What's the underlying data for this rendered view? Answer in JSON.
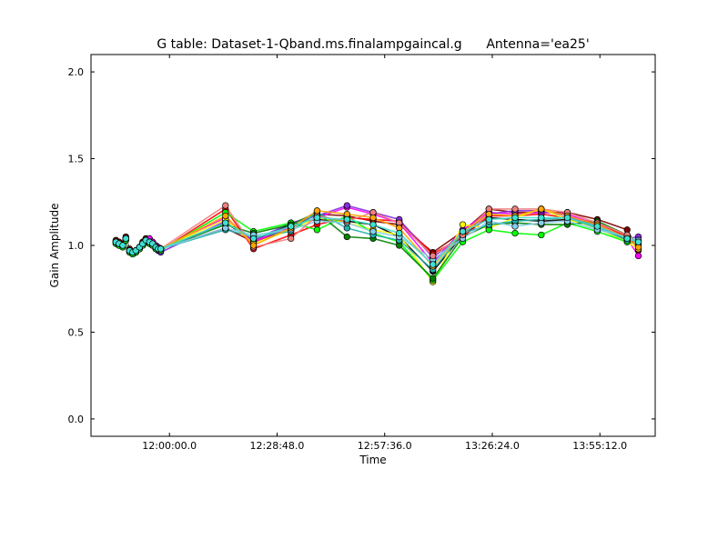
{
  "chart_data": {
    "type": "line",
    "title": "G table: Dataset-1-Qband.ms.finalampgaincal.g      Antenna='ea25'",
    "xlabel": "Time",
    "ylabel": "Gain Amplitude",
    "x_unit": "time of day",
    "xlim": [
      "11:39:00",
      "14:10:00"
    ],
    "ylim": [
      -0.1,
      2.1
    ],
    "xticks": [
      "12:00:00.0",
      "12:28:48.0",
      "12:57:36.0",
      "13:26:24.0",
      "13:55:12.0"
    ],
    "yticks": [
      "0.0",
      "0.5",
      "1.0",
      "1.5",
      "2.0"
    ],
    "grid": false,
    "legend": "none",
    "x": [
      "11:45:40",
      "11:46:30",
      "11:47:30",
      "11:48:20",
      "11:49:20",
      "11:50:10",
      "11:51:00",
      "11:52:00",
      "11:52:50",
      "11:53:40",
      "11:54:40",
      "11:55:30",
      "11:56:20",
      "11:57:00",
      "11:57:40",
      "12:15:00",
      "12:22:30",
      "12:32:30",
      "12:39:30",
      "12:47:30",
      "12:54:30",
      "13:01:30",
      "13:10:30",
      "13:18:30",
      "13:25:30",
      "13:32:30",
      "13:39:30",
      "13:46:30",
      "13:54:30",
      "14:02:30",
      "14:05:30"
    ],
    "series": [
      {
        "color": "#000000",
        "values": [
          1.02,
          1.01,
          1.0,
          1.04,
          0.97,
          0.96,
          0.97,
          0.99,
          1.01,
          1.03,
          1.02,
          1.0,
          0.99,
          0.98,
          0.98,
          1.13,
          1.03,
          1.12,
          1.15,
          1.14,
          1.12,
          1.05,
          0.85,
          1.06,
          1.16,
          1.15,
          1.14,
          1.15,
          1.12,
          1.03,
          1.0
        ]
      },
      {
        "color": "#800000",
        "values": [
          1.03,
          1.02,
          1.01,
          1.05,
          0.98,
          0.96,
          0.96,
          0.99,
          1.02,
          1.04,
          1.03,
          1.01,
          0.99,
          0.98,
          0.98,
          1.1,
          1.02,
          1.1,
          1.18,
          1.17,
          1.14,
          1.12,
          0.96,
          1.08,
          1.21,
          1.19,
          1.19,
          1.19,
          1.15,
          1.09,
          0.97
        ]
      },
      {
        "color": "#ff0000",
        "values": [
          1.01,
          1.0,
          0.99,
          1.03,
          0.96,
          0.95,
          0.96,
          0.98,
          1.0,
          1.02,
          1.01,
          1.0,
          0.98,
          0.97,
          0.97,
          1.21,
          0.98,
          1.06,
          1.12,
          1.16,
          1.15,
          1.14,
          0.95,
          1.05,
          1.17,
          1.17,
          1.18,
          1.16,
          1.13,
          1.05,
          0.99
        ]
      },
      {
        "color": "#ff00ff",
        "values": [
          1.02,
          1.01,
          1.0,
          1.04,
          0.97,
          0.96,
          0.97,
          0.99,
          1.01,
          1.03,
          1.04,
          1.02,
          1.0,
          0.99,
          0.98,
          1.16,
          1.02,
          1.11,
          1.16,
          1.22,
          1.18,
          1.13,
          0.9,
          1.09,
          1.19,
          1.18,
          1.19,
          1.18,
          1.12,
          1.04,
          0.94
        ]
      },
      {
        "color": "#8a2be2",
        "values": [
          1.02,
          1.01,
          1.0,
          1.04,
          0.97,
          0.96,
          0.96,
          0.98,
          1.01,
          1.03,
          1.02,
          1.01,
          0.99,
          0.97,
          0.96,
          1.14,
          1.03,
          1.13,
          1.17,
          1.23,
          1.19,
          1.15,
          0.93,
          1.07,
          1.18,
          1.2,
          1.2,
          1.17,
          1.11,
          1.04,
          1.05
        ]
      },
      {
        "color": "#ffff00",
        "values": [
          1.02,
          1.01,
          1.0,
          1.04,
          0.97,
          0.96,
          0.97,
          0.99,
          1.01,
          1.03,
          1.02,
          1.01,
          0.99,
          0.98,
          0.98,
          1.15,
          1.01,
          1.09,
          1.16,
          1.13,
          1.09,
          1.06,
          0.79,
          1.12,
          1.1,
          1.16,
          1.21,
          1.15,
          1.1,
          1.02,
          0.98
        ]
      },
      {
        "color": "#00ff00",
        "values": [
          1.01,
          1.0,
          0.99,
          1.03,
          0.96,
          0.95,
          0.96,
          0.98,
          1.0,
          1.02,
          1.01,
          1.0,
          0.98,
          0.98,
          0.97,
          1.19,
          1.08,
          1.13,
          1.09,
          1.17,
          1.07,
          1.02,
          0.8,
          1.02,
          1.09,
          1.07,
          1.06,
          1.13,
          1.08,
          1.02,
          1.01
        ]
      },
      {
        "color": "#008000",
        "values": [
          1.02,
          1.01,
          1.0,
          1.04,
          0.97,
          0.96,
          0.97,
          0.99,
          1.01,
          1.03,
          1.02,
          1.01,
          0.99,
          0.98,
          0.98,
          1.12,
          1.07,
          1.12,
          1.19,
          1.05,
          1.04,
          1.0,
          0.81,
          1.05,
          1.12,
          1.13,
          1.12,
          1.12,
          1.14,
          1.06,
          1.02
        ]
      },
      {
        "color": "#20b2aa",
        "values": [
          1.02,
          1.01,
          1.0,
          1.04,
          0.97,
          0.96,
          0.97,
          0.99,
          1.01,
          1.03,
          1.02,
          1.01,
          0.99,
          0.98,
          0.98,
          1.09,
          1.05,
          1.08,
          1.19,
          1.1,
          1.06,
          1.03,
          0.86,
          1.07,
          1.12,
          1.14,
          1.15,
          1.16,
          1.1,
          1.03,
          1.03
        ]
      },
      {
        "color": "#87ceeb",
        "values": [
          1.02,
          1.01,
          1.0,
          1.04,
          0.97,
          0.96,
          0.97,
          0.99,
          1.01,
          1.03,
          1.02,
          1.01,
          0.99,
          0.98,
          0.98,
          1.1,
          1.06,
          1.09,
          1.14,
          1.13,
          1.08,
          1.05,
          0.92,
          1.04,
          1.14,
          1.11,
          1.13,
          1.14,
          1.09,
          1.05,
          1.03
        ]
      },
      {
        "color": "#f08080",
        "values": [
          1.02,
          1.01,
          1.0,
          1.04,
          0.97,
          0.96,
          0.97,
          0.99,
          1.01,
          1.03,
          1.02,
          1.01,
          0.99,
          0.98,
          0.98,
          1.23,
          0.99,
          1.04,
          1.17,
          1.14,
          1.19,
          1.13,
          0.94,
          1.06,
          1.21,
          1.21,
          1.21,
          1.19,
          1.13,
          1.06,
          1.0
        ]
      },
      {
        "color": "#ffa500",
        "values": [
          1.02,
          1.01,
          1.0,
          1.04,
          0.97,
          0.96,
          0.97,
          0.99,
          1.01,
          1.03,
          1.02,
          1.01,
          0.99,
          0.98,
          0.98,
          1.17,
          1.0,
          1.1,
          1.2,
          1.18,
          1.16,
          1.1,
          0.88,
          1.08,
          1.18,
          1.17,
          1.21,
          1.17,
          1.12,
          1.04,
          0.99
        ]
      },
      {
        "color": "#40e0d0",
        "values": [
          1.02,
          1.01,
          1.0,
          1.04,
          0.97,
          0.96,
          0.97,
          0.99,
          1.01,
          1.03,
          1.02,
          1.01,
          0.99,
          0.98,
          0.98,
          1.13,
          1.04,
          1.11,
          1.16,
          1.15,
          1.12,
          1.07,
          0.89,
          1.08,
          1.15,
          1.16,
          1.16,
          1.16,
          1.11,
          1.04,
          1.02
        ]
      }
    ]
  }
}
